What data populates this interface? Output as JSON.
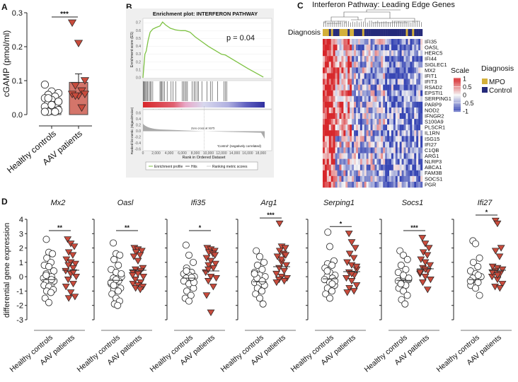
{
  "panel_labels": {
    "a": "A",
    "b": "B",
    "c": "C",
    "d": "D"
  },
  "colors": {
    "aav": "#c84b3c",
    "bar": "#d4756a",
    "mpo": "#d4b03a",
    "control": "#252a7a",
    "es": "#7ec243",
    "hot": "#d7262a",
    "cold": "#3546b5"
  },
  "chart_data": [
    {
      "id": "A",
      "type": "scatter-bar",
      "ylabel": "cGAMP (pmol/ml)",
      "ylim": [
        0,
        0.3
      ],
      "yticks": [
        "0.0",
        "0.1",
        "0.2",
        "0.3"
      ],
      "ytick_values": [
        0,
        0.1,
        0.2,
        0.3
      ],
      "categories": [
        "Healthy controls",
        "AAV patients"
      ],
      "significance": "***",
      "series": [
        {
          "name": "Healthy controls",
          "mean": 0.025,
          "sem": 0.005,
          "values": [
            0.08,
            0.06,
            0.055,
            0.05,
            0.045,
            0.04,
            0.035,
            0.03,
            0.025,
            0.02,
            0.015,
            0.01,
            0.005,
            0,
            0,
            0,
            0.02,
            0.03,
            0.04
          ]
        },
        {
          "name": "AAV patients",
          "mean": 0.095,
          "sem": 0.025,
          "values": [
            0.27,
            0.21,
            0.1,
            0.085,
            0.07,
            0.06,
            0.055,
            0.06,
            0.055,
            0.02
          ]
        }
      ]
    },
    {
      "id": "B",
      "type": "line",
      "title": "Enrichment plot: INTERFERON PATHWAY",
      "annotation": "p = 0.04",
      "ylabel_top": "Enrichment score (ES)",
      "ylabel_bottom": "Ranked list metric (Signal2Noise)",
      "xlabel": "Rank in Ordered Dataset",
      "es_ticks": [
        "0.0",
        "0.1",
        "0.2",
        "0.3",
        "0.4",
        "0.5",
        "0.6",
        "0.7"
      ],
      "metric_ticks": [
        "0.6",
        "0.4",
        "0.2",
        "0.0",
        "-0.2",
        "-0.4",
        "-0.6"
      ],
      "x_ticks": [
        "0",
        "2,000",
        "4,000",
        "6,000",
        "8,000",
        "10,000",
        "12,000",
        "14,000",
        "16,000",
        "18,000"
      ],
      "xlim": [
        0,
        18600
      ],
      "ylim": [
        0,
        0.75
      ],
      "positive_label": "'MPO' (positively correlated)",
      "negative_label": "'Control' (negatively correlated)",
      "zero_cross": "Zero cross at 9375",
      "zero_cross_value": 9375,
      "legend": [
        "Enrichment profile",
        "Hits",
        "Ranking metric scores"
      ],
      "es_curve": [
        [
          0,
          0
        ],
        [
          150,
          0.15
        ],
        [
          300,
          0.3
        ],
        [
          500,
          0.34
        ],
        [
          800,
          0.48
        ],
        [
          1100,
          0.58
        ],
        [
          1500,
          0.62
        ],
        [
          2000,
          0.64
        ],
        [
          2600,
          0.66
        ],
        [
          3000,
          0.71
        ],
        [
          3500,
          0.67
        ],
        [
          4200,
          0.63
        ],
        [
          5000,
          0.61
        ],
        [
          5800,
          0.6
        ],
        [
          6500,
          0.6
        ],
        [
          7200,
          0.58
        ],
        [
          8000,
          0.52
        ],
        [
          9000,
          0.46
        ],
        [
          10000,
          0.4
        ],
        [
          11000,
          0.35
        ],
        [
          12000,
          0.3
        ],
        [
          12600,
          0.29
        ],
        [
          14000,
          0.22
        ],
        [
          16000,
          0.12
        ],
        [
          18400,
          0.01
        ]
      ],
      "hits": [
        60,
        150,
        300,
        420,
        560,
        700,
        900,
        1100,
        1250,
        1500,
        2600,
        2750,
        2900,
        3050,
        3300,
        3700,
        4300,
        4600,
        5000,
        6000,
        6200,
        6400,
        6600,
        6800,
        7500,
        7800,
        8000,
        8300,
        8500,
        9000,
        9800,
        10300,
        10600,
        11400,
        12400,
        12600,
        12800
      ]
    },
    {
      "id": "C",
      "type": "heatmap",
      "title": "Interferon Pathway: Leading Edge Genes",
      "annotation_label": "Diagnosis",
      "genes": [
        "IFI35",
        "OASL",
        "HERC5",
        "IFI44",
        "SIGLEC1",
        "MX2",
        "IFIT1",
        "IFIT3",
        "RSAD2",
        "EPSTI1",
        "SERPING1",
        "PARP9",
        "NOD2",
        "IFNGR2",
        "S100A9",
        "PLSCR1",
        "IL1RN",
        "ISG15",
        "IFI27",
        "C1QB",
        "ARG1",
        "NLRP3",
        "ABCA1",
        "FAM3B",
        "SOCS1",
        "PGR"
      ],
      "scale_title": "Scale",
      "scale_ticks": [
        "1",
        "0.5",
        "0",
        "-0.5",
        "-1"
      ],
      "scale_values": [
        1,
        0.5,
        0,
        -0.5,
        -1
      ],
      "legend_title": "Diagnosis",
      "legend": [
        "MPO",
        "Control"
      ],
      "diagnosis": "MMCMCMMCMCCCMMMMMMCMMMCCCCCCMCCCCCCMCCCCCCCCCCCCCMCCCCCCCCCCMCCCCMCCCCCCC"
    },
    {
      "id": "D",
      "type": "scatter",
      "ylabel": "differential gene expression",
      "ylim": [
        -3,
        4
      ],
      "yticks": [
        "-3",
        "-2",
        "-1",
        "0",
        "1",
        "2",
        "3",
        "4"
      ],
      "ytick_values": [
        -3,
        -2,
        -1,
        0,
        1,
        2,
        3,
        4
      ],
      "categories": [
        "Healthy controls",
        "AAV patients"
      ],
      "panels": [
        {
          "gene": "Mx2",
          "sig": "**",
          "hc_mean": -0.2,
          "aav_mean": 0.45,
          "hc": [
            2.6,
            1.7,
            1.6,
            1.3,
            1.0,
            0.8,
            0.7,
            0.4,
            0.2,
            0,
            -0.1,
            -0.2,
            -0.3,
            -0.4,
            -0.5,
            -0.6,
            -0.7,
            -0.9,
            -1.0,
            -1.1,
            -1.5,
            -1.8,
            -0.3,
            0.1,
            -0.2
          ],
          "aav": [
            2.6,
            2.3,
            2.1,
            1.7,
            1.5,
            1.2,
            1.0,
            0.9,
            0.8,
            0.6,
            0.4,
            0.2,
            0,
            -0.2,
            -0.5,
            -0.7,
            -1.1,
            -1.4,
            -1.5,
            0.3
          ]
        },
        {
          "gene": "Oasl",
          "sig": "**",
          "hc_mean": -0.25,
          "aav_mean": 0.45,
          "hc": [
            2.35,
            1.6,
            1.5,
            1.2,
            0.8,
            0.5,
            0.3,
            0,
            -0.1,
            -0.3,
            -0.5,
            -0.7,
            -0.8,
            -0.9,
            -1.0,
            -1.2,
            -1.5,
            -1.7,
            -1.9,
            -2.0,
            -0.4,
            -0.2,
            0.2,
            -0.6
          ],
          "aav": [
            2.0,
            1.9,
            1.8,
            1.7,
            1.5,
            1.4,
            1.1,
            0.6,
            0.5,
            0.4,
            0.3,
            0.2,
            0,
            -0.2,
            -0.4,
            -0.5,
            -0.6,
            -0.7,
            -0.8,
            -0.9,
            0.1
          ]
        },
        {
          "gene": "Ifi35",
          "sig": "*",
          "hc_mean": -0.1,
          "aav_mean": 0.4,
          "hc": [
            2.2,
            1.5,
            1.0,
            0.6,
            0.3,
            0.2,
            0.1,
            0,
            -0.1,
            -0.2,
            -0.3,
            -0.5,
            -0.8,
            -1.0,
            -1.3,
            -1.5,
            -1.7,
            -0.4,
            0.4,
            -0.05
          ],
          "aav": [
            2.0,
            1.9,
            1.8,
            1.7,
            1.6,
            1.3,
            1.1,
            0.9,
            0.8,
            0.6,
            0.3,
            0,
            -0.1,
            -0.3,
            -0.7,
            -1.3,
            -2.5,
            1.5,
            0.5
          ]
        },
        {
          "gene": "Arg1",
          "sig": "***",
          "hc_mean": -0.35,
          "aav_mean": 0.7,
          "hc": [
            1.8,
            1.4,
            1.0,
            0.8,
            0.5,
            0.3,
            0.1,
            0,
            -0.2,
            -0.3,
            -0.4,
            -0.5,
            -0.6,
            -0.8,
            -1.0,
            -1.2,
            -1.5,
            -1.9,
            -0.1,
            -0.3,
            0.2
          ],
          "aav": [
            3.7,
            2.1,
            2.0,
            1.8,
            1.6,
            1.4,
            1.0,
            0.8,
            0.6,
            0.4,
            0.2,
            0,
            -0.1,
            -0.2,
            -0.3,
            -0.4,
            1.2,
            1.5
          ]
        },
        {
          "gene": "Serping1",
          "sig": "*",
          "hc_mean": -0.15,
          "aav_mean": 0.35,
          "hc": [
            3.1,
            2.1,
            1.1,
            0.9,
            0.8,
            0.6,
            0.3,
            0.1,
            0,
            -0.1,
            -0.2,
            -0.4,
            -0.6,
            -0.8,
            -1.0,
            -1.2,
            -1.5,
            -0.3,
            0.4,
            -0.5
          ],
          "aav": [
            3.0,
            2.4,
            2.0,
            1.6,
            1.3,
            1.0,
            0.8,
            0.5,
            0.3,
            0.1,
            -0.1,
            -0.3,
            -0.6,
            -0.8,
            -1.0,
            -1.1,
            0.2,
            0.7
          ]
        },
        {
          "gene": "Socs1",
          "sig": "***",
          "hc_mean": -0.25,
          "aav_mean": 0.55,
          "hc": [
            1.8,
            1.5,
            1.2,
            0.8,
            0.5,
            0.3,
            0,
            -0.2,
            -0.4,
            -0.6,
            -0.8,
            -1.0,
            -1.3,
            -1.6,
            -1.9,
            -0.3,
            0.1,
            -0.1,
            -0.5
          ],
          "aav": [
            2.7,
            2.3,
            2.0,
            1.7,
            1.5,
            1.2,
            1.0,
            0.8,
            0.6,
            0.4,
            0.2,
            0,
            -0.2,
            -0.4,
            -0.9,
            0.3,
            0.5
          ]
        },
        {
          "gene": "Ifi27",
          "sig": "*",
          "hc_mean": -0.2,
          "aav_mean": 0.45,
          "hc": [
            2.5,
            2.3,
            1.3,
            1.0,
            0.7,
            0.4,
            0.2,
            0,
            -0.2,
            -0.4,
            -0.6,
            -0.8,
            -1.3,
            -0.1,
            0.1,
            -0.3
          ],
          "aav": [
            3.9,
            3.7,
            2.0,
            1.8,
            1.4,
            0.7,
            0.6,
            0.5,
            0.4,
            0.2,
            0,
            -0.2,
            -0.5,
            -0.7,
            -0.8,
            0.3,
            0.1
          ]
        }
      ]
    }
  ]
}
